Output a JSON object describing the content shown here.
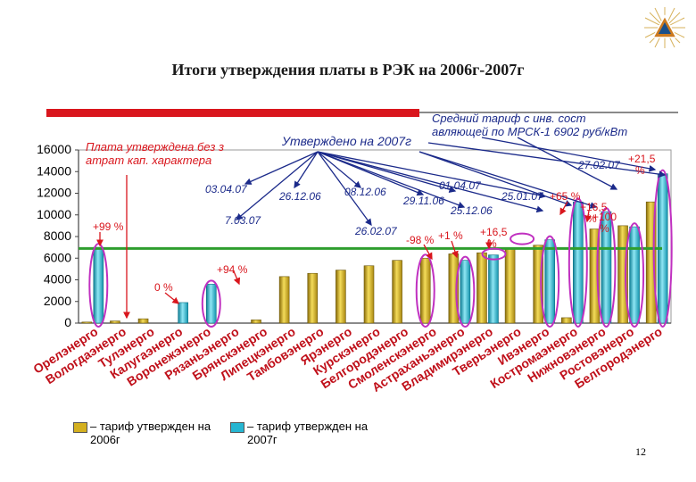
{
  "title": "Итоги утверждения платы в РЭК на 2006г-2007г",
  "page_number": "12",
  "annotations": {
    "left_note": "Плата утверждена без затрат кап. характера",
    "center_note": "Утверждено на 2007г",
    "avg_tariff": "Средний тариф с инв. составляющей по МРСК-1 6902 руб/кВт"
  },
  "legend": {
    "item_2006": "– тариф утвержден на 2006г",
    "item_2007": "– тариф утвержден на 2007г"
  },
  "colors": {
    "bar_2006": "#d4b020",
    "bar_2007": "#26b6d2",
    "avg_line": "#2e9e2e",
    "highlight": "#c030c0",
    "accent_red": "#d9161d"
  },
  "chart_data": {
    "type": "bar",
    "ylim": [
      0,
      16000
    ],
    "yticks": [
      0,
      2000,
      4000,
      6000,
      8000,
      10000,
      12000,
      14000,
      16000
    ],
    "categories": [
      "Орелэнерго",
      "Вологдаэнерго",
      "Тулэнерго",
      "Калугаэнерго",
      "Воронежэнерго",
      "Рязаньэнерго",
      "Брянскэнерго",
      "Липецкэнерго",
      "Тамбовэнерго",
      "Ярэнерго",
      "Курскэнерго",
      "Белгородэнерго",
      "Смоленскэнерго",
      "Астраханьэнерго",
      "Владимирэнерго",
      "Тверьэнерго",
      "Ивэнерго",
      "Костромаэнерго",
      "Нижновэнерго",
      "Ростовэнерго",
      "Белгородэнерго"
    ],
    "series": [
      {
        "name": "2006",
        "values": [
          100,
          200,
          400,
          null,
          null,
          null,
          300,
          4300,
          4600,
          4900,
          5300,
          5800,
          6000,
          6400,
          6500,
          6900,
          7200,
          500,
          8700,
          9000,
          11200
        ]
      },
      {
        "name": "2007",
        "values": [
          7000,
          null,
          null,
          1900,
          3600,
          null,
          null,
          null,
          null,
          null,
          null,
          null,
          null,
          5800,
          6300,
          null,
          7700,
          11200,
          10300,
          8900,
          13800
        ]
      }
    ],
    "avg_line": 6902,
    "labels": [
      {
        "text": "+99 %"
      },
      {
        "text": "0 %"
      },
      {
        "text": "+94 %"
      },
      {
        "text": "03.04.07"
      },
      {
        "text": "7.03.07"
      },
      {
        "text": "26.12.06"
      },
      {
        "text": "08.12.06"
      },
      {
        "text": "26.02.07"
      },
      {
        "text": "29.11.06"
      },
      {
        "text": "01.04.07"
      },
      {
        "text": "25.12.06"
      },
      {
        "text": "-98 %"
      },
      {
        "text": "+1 %"
      },
      {
        "text": "+16,5 %"
      },
      {
        "text": "25.01.07"
      },
      {
        "text": "+65 %"
      },
      {
        "text": "+16,5 %"
      },
      {
        "text": "+100 %"
      },
      {
        "text": "27.02.07"
      },
      {
        "text": "+21,5 %"
      }
    ]
  }
}
